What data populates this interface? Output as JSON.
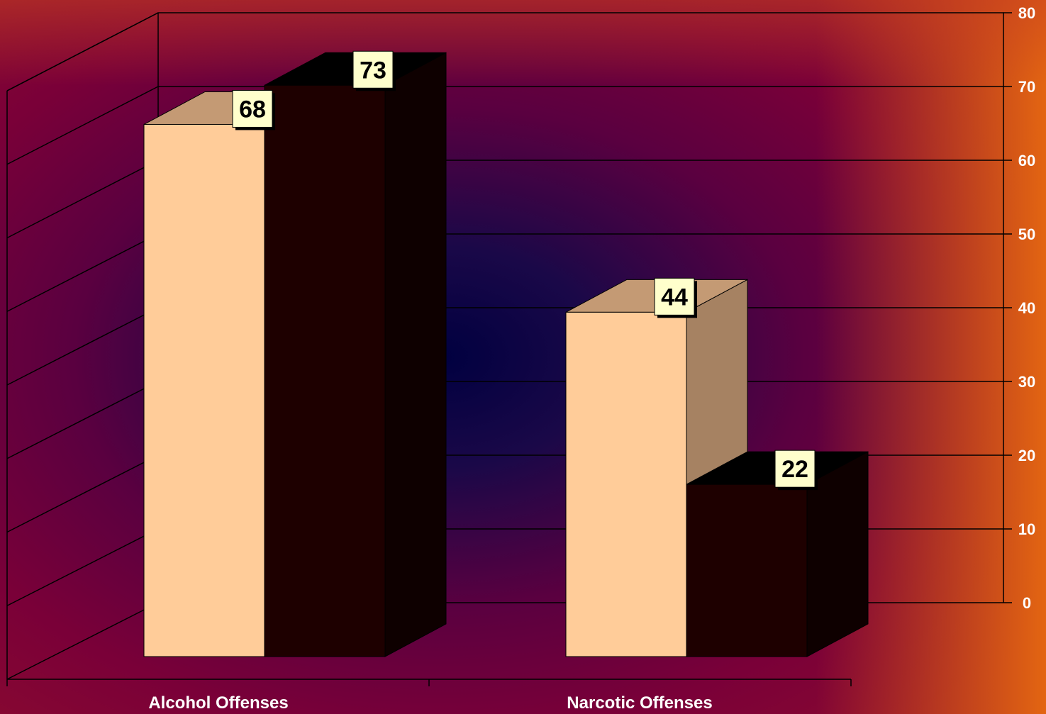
{
  "chart_data": {
    "type": "bar",
    "style": "3d-clustered-column",
    "categories": [
      "Alcohol Offenses",
      "Narcotic Offenses"
    ],
    "series": [
      {
        "values": [
          68,
          44
        ],
        "color": "#ffcc99"
      },
      {
        "values": [
          73,
          22
        ],
        "color": "#1e0000"
      }
    ],
    "ylim": [
      0,
      80
    ],
    "yticks": [
      "0",
      "10",
      "20",
      "30",
      "40",
      "50",
      "60",
      "70",
      "80"
    ],
    "ytick_values": [
      0,
      10,
      20,
      30,
      40,
      50,
      60,
      70,
      80
    ],
    "y_axis_side": "right",
    "grid": true,
    "legend": "none",
    "background_colors": {
      "edge": "#8a0038",
      "center": "#000050",
      "right": "#e06010"
    }
  }
}
